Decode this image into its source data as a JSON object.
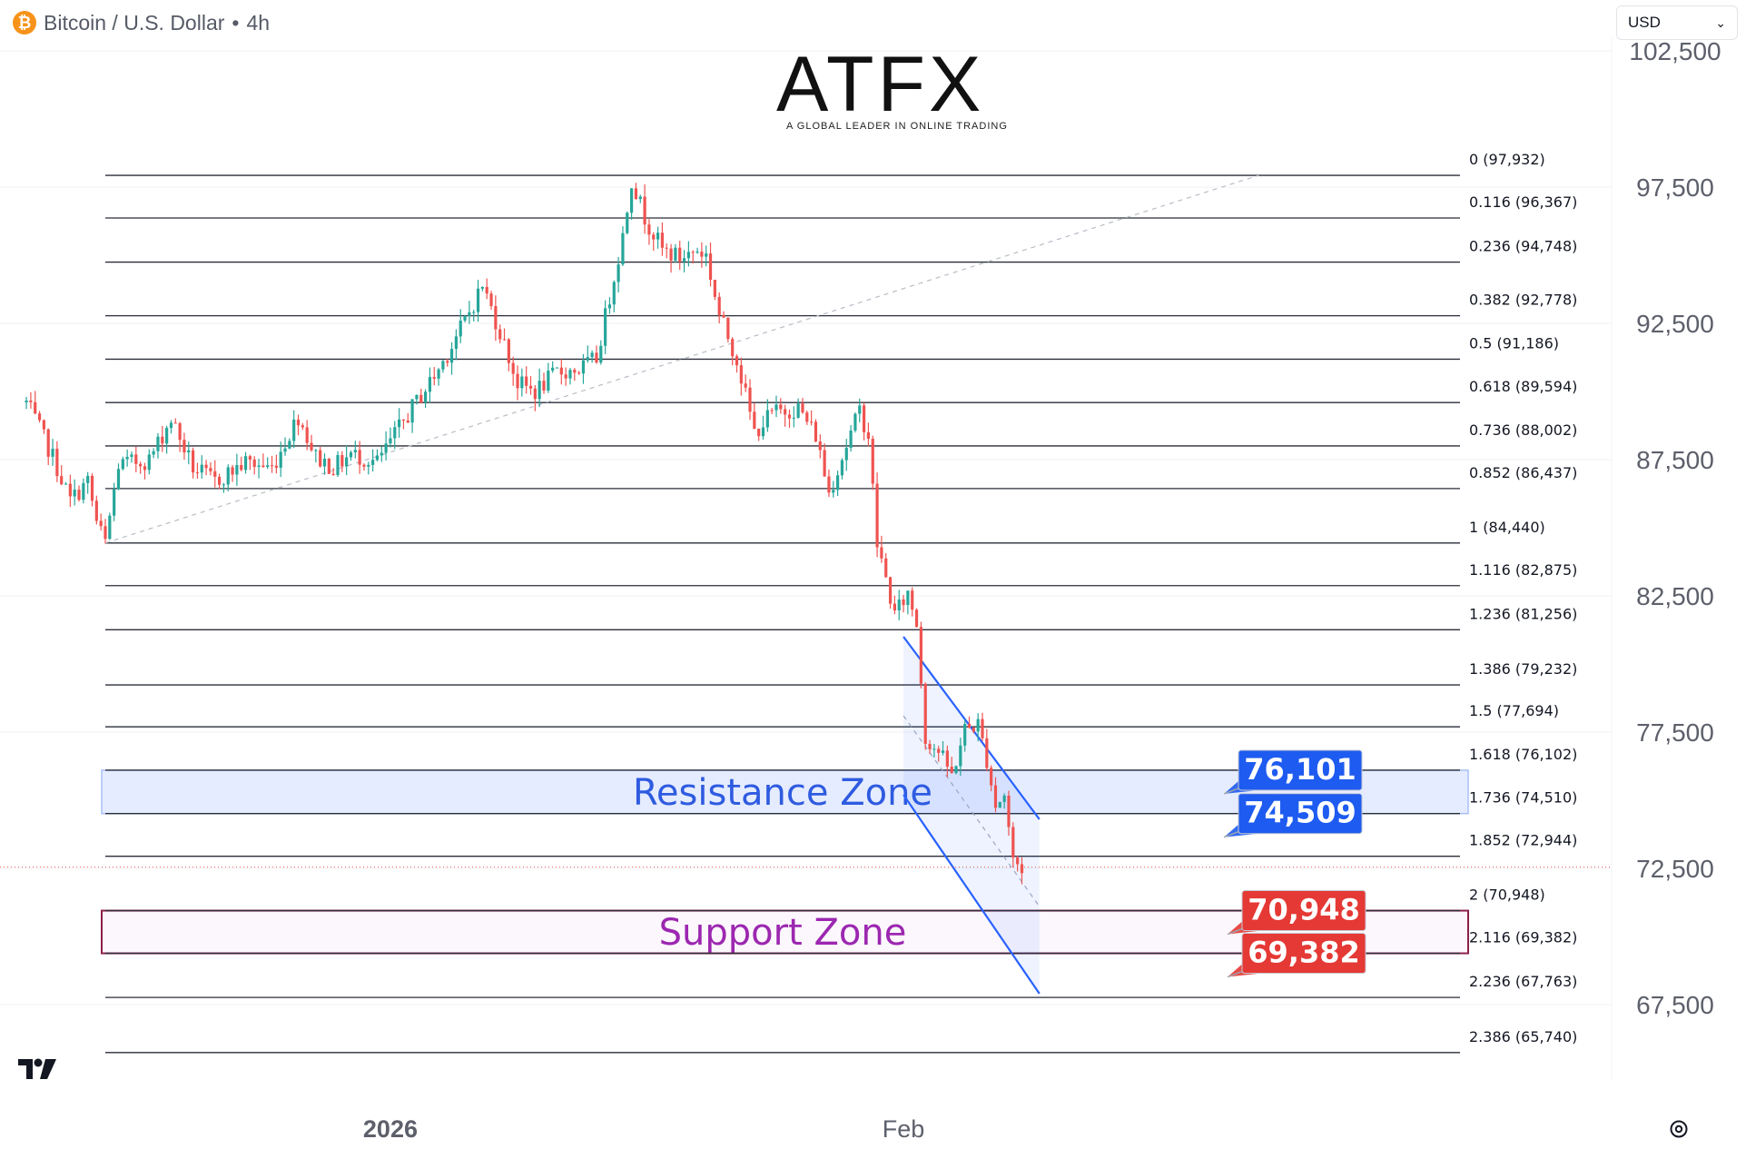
{
  "header": {
    "title": "Bitcoin / U.S. Dollar",
    "separator": "•",
    "interval": "4h",
    "icon": "bitcoin-icon"
  },
  "currency_selector": {
    "value": "USD",
    "icon": "chevron-down-icon"
  },
  "logo": {
    "text": "ATFX",
    "tagline": "A GLOBAL LEADER IN ONLINE TRADING"
  },
  "watermark_icon": "tradingview-logo",
  "settings_icon": "gear-icon",
  "colors": {
    "up": "#26a69a",
    "down": "#ef5350",
    "fib_line": "#2a2e39",
    "resistance": "#2962ff",
    "support": "#9c27b0",
    "red_label": "#e53935",
    "blue_label": "#1e5bf0"
  },
  "chart_data": {
    "type": "candlestick",
    "title": "Bitcoin / U.S. Dollar • 4h",
    "price_axis": {
      "side": "right",
      "ticks": [
        102500,
        97500,
        92500,
        87500,
        82500,
        77500,
        72500,
        67500
      ],
      "tick_labels": [
        "102,500",
        "97,500",
        "92,500",
        "87,500",
        "82,500",
        "77,500",
        "72,500",
        "67,500"
      ]
    },
    "time_axis": {
      "labels": [
        {
          "text": "2026",
          "bar": 65
        },
        {
          "text": "Feb",
          "bar": 182
        }
      ]
    },
    "fibonacci": {
      "levels": [
        {
          "ratio": "0",
          "price": 97932,
          "label": "0 (97,932)"
        },
        {
          "ratio": "0.116",
          "price": 96367,
          "label": "0.116 (96,367)"
        },
        {
          "ratio": "0.236",
          "price": 94748,
          "label": "0.236 (94,748)"
        },
        {
          "ratio": "0.382",
          "price": 92778,
          "label": "0.382 (92,778)"
        },
        {
          "ratio": "0.5",
          "price": 91186,
          "label": "0.5 (91,186)"
        },
        {
          "ratio": "0.618",
          "price": 89594,
          "label": "0.618 (89,594)"
        },
        {
          "ratio": "0.736",
          "price": 88002,
          "label": "0.736 (88,002)"
        },
        {
          "ratio": "0.852",
          "price": 86437,
          "label": "0.852 (86,437)"
        },
        {
          "ratio": "1",
          "price": 84440,
          "label": "1 (84,440)"
        },
        {
          "ratio": "1.116",
          "price": 82875,
          "label": "1.116 (82,875)"
        },
        {
          "ratio": "1.236",
          "price": 81256,
          "label": "1.236 (81,256)"
        },
        {
          "ratio": "1.386",
          "price": 79232,
          "label": "1.386 (79,232)"
        },
        {
          "ratio": "1.5",
          "price": 77694,
          "label": "1.5 (77,694)"
        },
        {
          "ratio": "1.618",
          "price": 76102,
          "label": "1.618 (76,102)"
        },
        {
          "ratio": "1.736",
          "price": 74510,
          "label": "1.736 (74,510)"
        },
        {
          "ratio": "1.852",
          "price": 72944,
          "label": "1.852 (72,944)"
        },
        {
          "ratio": "2",
          "price": 70948,
          "label": "2 (70,948)"
        },
        {
          "ratio": "2.116",
          "price": 69382,
          "label": "2.116 (69,382)"
        },
        {
          "ratio": "2.236",
          "price": 67763,
          "label": "2.236 (67,763)"
        },
        {
          "ratio": "2.386",
          "price": 65740,
          "label": "2.386 (65,740)"
        }
      ],
      "trend_start": {
        "bar": 0,
        "price": 84440
      },
      "trend_end": {
        "bar": 263,
        "price": 97932
      }
    },
    "zones": [
      {
        "name": "Resistance Zone",
        "from": 74510,
        "to": 76102,
        "color": "#2962ff"
      },
      {
        "name": "Support Zone",
        "from": 69382,
        "to": 70948,
        "color": "#9c27b0"
      }
    ],
    "callouts": [
      {
        "text": "76,101",
        "price": 76101,
        "color": "#1e5bf0"
      },
      {
        "text": "74,509",
        "price": 74509,
        "color": "#1e5bf0"
      },
      {
        "text": "70,948",
        "price": 70948,
        "color": "#e53935"
      },
      {
        "text": "69,382",
        "price": 69382,
        "color": "#e53935"
      }
    ],
    "channel": {
      "upper": [
        {
          "bar": 182,
          "price": 81000
        },
        {
          "bar": 213,
          "price": 74300
        }
      ],
      "lower": [
        {
          "bar": 182,
          "price": 75200
        },
        {
          "bar": 213,
          "price": 67900
        }
      ],
      "mid": [
        {
          "bar": 182,
          "price": 78100
        },
        {
          "bar": 213,
          "price": 71100
        }
      ]
    },
    "last_price": 72544,
    "anchors": [
      {
        "bar": -18,
        "price": 89600
      },
      {
        "bar": -12,
        "price": 87600
      },
      {
        "bar": -8,
        "price": 86000
      },
      {
        "bar": -4,
        "price": 86700
      },
      {
        "bar": -2,
        "price": 85200
      },
      {
        "bar": 0,
        "price": 84440
      },
      {
        "bar": 3,
        "price": 87300
      },
      {
        "bar": 10,
        "price": 87500
      },
      {
        "bar": 15,
        "price": 89000
      },
      {
        "bar": 20,
        "price": 87200
      },
      {
        "bar": 25,
        "price": 86700
      },
      {
        "bar": 32,
        "price": 87400
      },
      {
        "bar": 38,
        "price": 87200
      },
      {
        "bar": 44,
        "price": 89100
      },
      {
        "bar": 48,
        "price": 87600
      },
      {
        "bar": 52,
        "price": 87200
      },
      {
        "bar": 56,
        "price": 87700
      },
      {
        "bar": 62,
        "price": 87400
      },
      {
        "bar": 70,
        "price": 89400
      },
      {
        "bar": 76,
        "price": 90800
      },
      {
        "bar": 82,
        "price": 92600
      },
      {
        "bar": 86,
        "price": 93900
      },
      {
        "bar": 90,
        "price": 92200
      },
      {
        "bar": 94,
        "price": 90300
      },
      {
        "bar": 98,
        "price": 90000
      },
      {
        "bar": 103,
        "price": 90700
      },
      {
        "bar": 108,
        "price": 90800
      },
      {
        "bar": 112,
        "price": 91200
      },
      {
        "bar": 115,
        "price": 93500
      },
      {
        "bar": 118,
        "price": 95700
      },
      {
        "bar": 120,
        "price": 97800
      },
      {
        "bar": 123,
        "price": 96400
      },
      {
        "bar": 127,
        "price": 95200
      },
      {
        "bar": 131,
        "price": 94900
      },
      {
        "bar": 135,
        "price": 95200
      },
      {
        "bar": 137,
        "price": 95000
      },
      {
        "bar": 140,
        "price": 92800
      },
      {
        "bar": 144,
        "price": 91200
      },
      {
        "bar": 148,
        "price": 88500
      },
      {
        "bar": 152,
        "price": 89200
      },
      {
        "bar": 158,
        "price": 89400
      },
      {
        "bar": 162,
        "price": 88400
      },
      {
        "bar": 165,
        "price": 86300
      },
      {
        "bar": 168,
        "price": 87600
      },
      {
        "bar": 172,
        "price": 89300
      },
      {
        "bar": 174,
        "price": 88400
      },
      {
        "bar": 176,
        "price": 84400
      },
      {
        "bar": 180,
        "price": 81800
      },
      {
        "bar": 183,
        "price": 82600
      },
      {
        "bar": 185,
        "price": 81500
      },
      {
        "bar": 187,
        "price": 77300
      },
      {
        "bar": 190,
        "price": 76800
      },
      {
        "bar": 193,
        "price": 75900
      },
      {
        "bar": 196,
        "price": 77600
      },
      {
        "bar": 199,
        "price": 77800
      },
      {
        "bar": 201,
        "price": 76500
      },
      {
        "bar": 203,
        "price": 74800
      },
      {
        "bar": 205,
        "price": 75200
      },
      {
        "bar": 207,
        "price": 72800
      },
      {
        "bar": 209,
        "price": 72500
      }
    ]
  }
}
